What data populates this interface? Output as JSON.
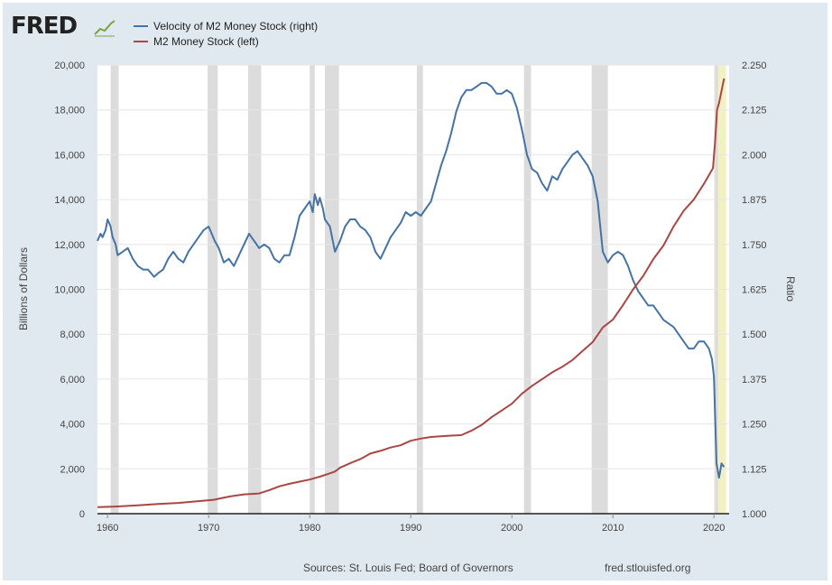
{
  "brand": {
    "logo_text": "FRED",
    "logo_mark_icon": "line-chart-icon"
  },
  "colors": {
    "background": "#e1e9f0",
    "plot_background": "#ffffff",
    "grid": "#e6e6e6",
    "recession": "#dcdcdc",
    "highlight": "#f2f1c4",
    "velocity": "#4572a7",
    "m2": "#aa4643"
  },
  "footer": {
    "sources": "Sources: St. Louis Fed; Board of Governors",
    "site": "fred.stlouisfed.org"
  },
  "chart_data": {
    "type": "line",
    "title": "",
    "xlabel": "",
    "ylabel": "Billions of Dollars",
    "y2label": "Ratio",
    "grid": true,
    "legend_position": "top-left",
    "xlim": [
      1959,
      2021.5
    ],
    "ylim": [
      0,
      20000
    ],
    "y2lim": [
      1.0,
      2.25
    ],
    "x_ticks": [
      "1960",
      "1970",
      "1980",
      "1990",
      "2000",
      "2010",
      "2020"
    ],
    "y_ticks": [
      "0",
      "2,000",
      "4,000",
      "6,000",
      "8,000",
      "10,000",
      "12,000",
      "14,000",
      "16,000",
      "18,000",
      "20,000"
    ],
    "y2_ticks": [
      "1.000",
      "1.125",
      "1.250",
      "1.375",
      "1.500",
      "1.625",
      "1.750",
      "1.875",
      "2.000",
      "2.125",
      "2.250"
    ],
    "recessions": [
      [
        1960.3,
        1961.1
      ],
      [
        1969.9,
        1970.9
      ],
      [
        1973.9,
        1975.2
      ],
      [
        1980.0,
        1980.5
      ],
      [
        1981.5,
        1982.9
      ],
      [
        1990.6,
        1991.2
      ],
      [
        2001.2,
        2001.9
      ],
      [
        2007.9,
        2009.5
      ],
      [
        2020.1,
        2020.4
      ]
    ],
    "highlight": [
      2020.0,
      2021.2
    ],
    "series": [
      {
        "name": "Velocity of M2 Money Stock (right)",
        "axis": "right",
        "x": [
          1959.0,
          1959.3,
          1959.5,
          1959.8,
          1960.0,
          1960.3,
          1960.5,
          1960.8,
          1961.0,
          1961.5,
          1962.0,
          1962.5,
          1963.0,
          1963.5,
          1964.0,
          1964.3,
          1964.6,
          1965.0,
          1965.5,
          1966.0,
          1966.5,
          1967.0,
          1967.5,
          1968.0,
          1968.5,
          1969.0,
          1969.5,
          1970.0,
          1970.3,
          1970.6,
          1971.0,
          1971.5,
          1972.0,
          1972.5,
          1973.0,
          1973.5,
          1974.0,
          1974.5,
          1975.0,
          1975.5,
          1976.0,
          1976.5,
          1977.0,
          1977.5,
          1978.0,
          1978.5,
          1979.0,
          1979.5,
          1980.0,
          1980.3,
          1980.5,
          1980.8,
          1981.0,
          1981.3,
          1981.5,
          1982.0,
          1982.5,
          1983.0,
          1983.5,
          1984.0,
          1984.5,
          1985.0,
          1985.5,
          1986.0,
          1986.5,
          1987.0,
          1987.5,
          1988.0,
          1988.5,
          1989.0,
          1989.5,
          1990.0,
          1990.5,
          1991.0,
          1991.5,
          1992.0,
          1992.5,
          1993.0,
          1993.5,
          1994.0,
          1994.5,
          1995.0,
          1995.5,
          1996.0,
          1996.5,
          1997.0,
          1997.5,
          1998.0,
          1998.5,
          1999.0,
          1999.5,
          2000.0,
          2000.5,
          2001.0,
          2001.5,
          2002.0,
          2002.5,
          2003.0,
          2003.5,
          2004.0,
          2004.5,
          2005.0,
          2005.5,
          2006.0,
          2006.5,
          2007.0,
          2007.5,
          2008.0,
          2008.5,
          2009.0,
          2009.5,
          2010.0,
          2010.5,
          2011.0,
          2011.5,
          2012.0,
          2012.5,
          2013.0,
          2013.5,
          2014.0,
          2014.5,
          2015.0,
          2015.5,
          2016.0,
          2016.5,
          2017.0,
          2017.5,
          2018.0,
          2018.5,
          2019.0,
          2019.5,
          2019.8,
          2020.0,
          2020.25,
          2020.5,
          2020.75,
          2021.0
        ],
        "values": [
          1.76,
          1.78,
          1.77,
          1.79,
          1.82,
          1.8,
          1.77,
          1.75,
          1.72,
          1.73,
          1.74,
          1.71,
          1.69,
          1.68,
          1.68,
          1.67,
          1.66,
          1.67,
          1.68,
          1.71,
          1.73,
          1.71,
          1.7,
          1.73,
          1.75,
          1.77,
          1.79,
          1.8,
          1.78,
          1.76,
          1.74,
          1.7,
          1.71,
          1.69,
          1.72,
          1.75,
          1.78,
          1.76,
          1.74,
          1.75,
          1.74,
          1.71,
          1.7,
          1.72,
          1.72,
          1.77,
          1.83,
          1.85,
          1.87,
          1.84,
          1.89,
          1.86,
          1.88,
          1.85,
          1.82,
          1.8,
          1.73,
          1.76,
          1.8,
          1.82,
          1.82,
          1.8,
          1.79,
          1.77,
          1.73,
          1.71,
          1.74,
          1.77,
          1.79,
          1.81,
          1.84,
          1.83,
          1.84,
          1.83,
          1.85,
          1.87,
          1.92,
          1.97,
          2.01,
          2.06,
          2.12,
          2.16,
          2.18,
          2.18,
          2.19,
          2.2,
          2.2,
          2.19,
          2.17,
          2.17,
          2.18,
          2.17,
          2.13,
          2.07,
          2.0,
          1.96,
          1.95,
          1.92,
          1.9,
          1.94,
          1.93,
          1.96,
          1.98,
          2.0,
          2.01,
          1.99,
          1.97,
          1.94,
          1.87,
          1.73,
          1.7,
          1.72,
          1.73,
          1.72,
          1.69,
          1.65,
          1.62,
          1.6,
          1.58,
          1.58,
          1.56,
          1.54,
          1.53,
          1.52,
          1.5,
          1.48,
          1.46,
          1.46,
          1.48,
          1.48,
          1.46,
          1.43,
          1.38,
          1.14,
          1.1,
          1.14,
          1.13
        ]
      },
      {
        "name": "M2 Money Stock (left)",
        "axis": "left",
        "x": [
          1959.0,
          1961.0,
          1963.0,
          1965.0,
          1967.0,
          1969.0,
          1970.5,
          1972.0,
          1973.5,
          1975.0,
          1976.0,
          1977.0,
          1978.0,
          1979.0,
          1980.0,
          1981.0,
          1982.0,
          1982.5,
          1983.0,
          1984.0,
          1985.0,
          1986.0,
          1987.0,
          1988.0,
          1989.0,
          1990.0,
          1991.0,
          1992.0,
          1993.0,
          1994.0,
          1995.0,
          1996.0,
          1997.0,
          1998.0,
          1999.0,
          2000.0,
          2001.0,
          2002.0,
          2003.0,
          2004.0,
          2005.0,
          2006.0,
          2007.0,
          2008.0,
          2008.7,
          2009.0,
          2010.0,
          2011.0,
          2012.0,
          2013.0,
          2014.0,
          2015.0,
          2016.0,
          2017.0,
          2018.0,
          2019.0,
          2019.9,
          2020.1,
          2020.3,
          2020.5,
          2021.0
        ],
        "values": [
          290,
          320,
          370,
          430,
          480,
          560,
          620,
          760,
          860,
          900,
          1050,
          1220,
          1330,
          1430,
          1520,
          1650,
          1800,
          1880,
          2050,
          2250,
          2430,
          2680,
          2800,
          2950,
          3050,
          3250,
          3350,
          3420,
          3450,
          3480,
          3500,
          3700,
          3950,
          4300,
          4600,
          4900,
          5350,
          5700,
          6000,
          6300,
          6550,
          6850,
          7250,
          7650,
          8100,
          8300,
          8650,
          9300,
          10000,
          10600,
          11350,
          11950,
          12800,
          13500,
          14000,
          14700,
          15400,
          16500,
          18000,
          18300,
          19400
        ]
      }
    ]
  }
}
